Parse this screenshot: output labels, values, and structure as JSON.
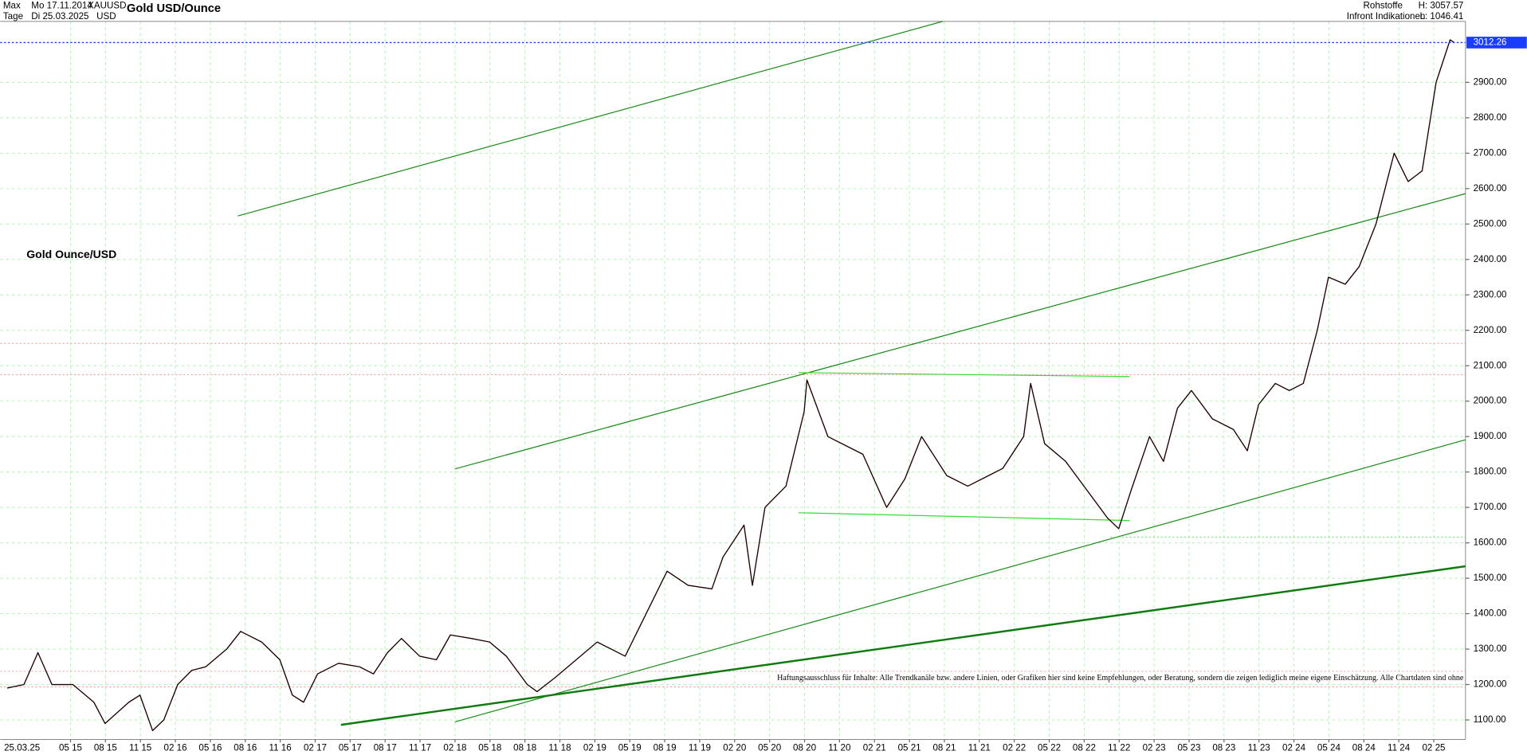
{
  "chart_data": {
    "type": "line",
    "title": "Gold USD/Ounce",
    "header": {
      "range": "Max",
      "start_date": "Mo 17.11.2014",
      "symbol": "XAUUSD",
      "interval": "Tage",
      "end_date": "Di 25.03.2025",
      "currency": "USD",
      "category": "Rohstoffe",
      "source": "Infront Indikationen",
      "high": "H: 3057.57",
      "low": "L: 1046.41"
    },
    "annotation": "Gold Ounce/USD",
    "disclaimer": "Haftungsausschluss für Inhalte: Alle Trendkanäle bzw. andere Linien, oder Grafiken hier sind keine Empfehlungen, oder Beratung, sondern die zeigen lediglich meine eigene Einschätzung. Alle Chartdaten sind ohne",
    "cursor_date": "25.03.25",
    "current_price": 3012.26,
    "xlim": [
      2014.83,
      2025.31
    ],
    "ylim": [
      1045,
      3072
    ],
    "grid": true,
    "xticks": [
      {
        "value": 2015.333,
        "label": "05 15"
      },
      {
        "value": 2015.583,
        "label": "08 15"
      },
      {
        "value": 2015.833,
        "label": "11 15"
      },
      {
        "value": 2016.083,
        "label": "02 16"
      },
      {
        "value": 2016.333,
        "label": "05 16"
      },
      {
        "value": 2016.583,
        "label": "08 16"
      },
      {
        "value": 2016.833,
        "label": "11 16"
      },
      {
        "value": 2017.083,
        "label": "02 17"
      },
      {
        "value": 2017.333,
        "label": "05 17"
      },
      {
        "value": 2017.583,
        "label": "08 17"
      },
      {
        "value": 2017.833,
        "label": "11 17"
      },
      {
        "value": 2018.083,
        "label": "02 18"
      },
      {
        "value": 2018.333,
        "label": "05 18"
      },
      {
        "value": 2018.583,
        "label": "08 18"
      },
      {
        "value": 2018.833,
        "label": "11 18"
      },
      {
        "value": 2019.083,
        "label": "02 19"
      },
      {
        "value": 2019.333,
        "label": "05 19"
      },
      {
        "value": 2019.583,
        "label": "08 19"
      },
      {
        "value": 2019.833,
        "label": "11 19"
      },
      {
        "value": 2020.083,
        "label": "02 20"
      },
      {
        "value": 2020.333,
        "label": "05 20"
      },
      {
        "value": 2020.583,
        "label": "08 20"
      },
      {
        "value": 2020.833,
        "label": "11 20"
      },
      {
        "value": 2021.083,
        "label": "02 21"
      },
      {
        "value": 2021.333,
        "label": "05 21"
      },
      {
        "value": 2021.583,
        "label": "08 21"
      },
      {
        "value": 2021.833,
        "label": "11 21"
      },
      {
        "value": 2022.083,
        "label": "02 22"
      },
      {
        "value": 2022.333,
        "label": "05 22"
      },
      {
        "value": 2022.583,
        "label": "08 22"
      },
      {
        "value": 2022.833,
        "label": "11 22"
      },
      {
        "value": 2023.083,
        "label": "02 23"
      },
      {
        "value": 2023.333,
        "label": "05 23"
      },
      {
        "value": 2023.583,
        "label": "08 23"
      },
      {
        "value": 2023.833,
        "label": "11 23"
      },
      {
        "value": 2024.083,
        "label": "02 24"
      },
      {
        "value": 2024.333,
        "label": "05 24"
      },
      {
        "value": 2024.583,
        "label": "08 24"
      },
      {
        "value": 2024.833,
        "label": "11 24"
      },
      {
        "value": 2025.083,
        "label": "02 25"
      }
    ],
    "yticks": [
      {
        "value": 1100,
        "label": "1100.00"
      },
      {
        "value": 1200,
        "label": "1200.00"
      },
      {
        "value": 1300,
        "label": "1300.00"
      },
      {
        "value": 1400,
        "label": "1400.00"
      },
      {
        "value": 1500,
        "label": "1500.00"
      },
      {
        "value": 1600,
        "label": "1600.00"
      },
      {
        "value": 1700,
        "label": "1700.00"
      },
      {
        "value": 1800,
        "label": "1800.00"
      },
      {
        "value": 1900,
        "label": "1900.00"
      },
      {
        "value": 2000,
        "label": "2000.00"
      },
      {
        "value": 2100,
        "label": "2100.00"
      },
      {
        "value": 2200,
        "label": "2200.00"
      },
      {
        "value": 2300,
        "label": "2300.00"
      },
      {
        "value": 2400,
        "label": "2400.00"
      },
      {
        "value": 2500,
        "label": "2500.00"
      },
      {
        "value": 2600,
        "label": "2600.00"
      },
      {
        "value": 2700,
        "label": "2700.00"
      },
      {
        "value": 2800,
        "label": "2800.00"
      },
      {
        "value": 2900,
        "label": "2900.00"
      }
    ],
    "series": [
      {
        "name": "XAUUSD",
        "color": "#1a0000",
        "x": [
          2014.88,
          2015.0,
          2015.1,
          2015.2,
          2015.35,
          2015.5,
          2015.58,
          2015.75,
          2015.83,
          2015.92,
          2016.0,
          2016.1,
          2016.2,
          2016.3,
          2016.45,
          2016.55,
          2016.7,
          2016.83,
          2016.92,
          2017.0,
          2017.1,
          2017.25,
          2017.4,
          2017.5,
          2017.6,
          2017.7,
          2017.83,
          2017.95,
          2018.05,
          2018.2,
          2018.33,
          2018.45,
          2018.6,
          2018.67,
          2018.8,
          2018.95,
          2019.1,
          2019.3,
          2019.45,
          2019.6,
          2019.75,
          2019.92,
          2020.0,
          2020.15,
          2020.21,
          2020.3,
          2020.45,
          2020.58,
          2020.6,
          2020.75,
          2020.9,
          2021.0,
          2021.17,
          2021.3,
          2021.42,
          2021.6,
          2021.75,
          2021.9,
          2022.0,
          2022.15,
          2022.2,
          2022.3,
          2022.45,
          2022.6,
          2022.75,
          2022.83,
          2022.92,
          2023.05,
          2023.15,
          2023.25,
          2023.35,
          2023.5,
          2023.65,
          2023.75,
          2023.83,
          2023.95,
          2024.05,
          2024.15,
          2024.25,
          2024.33,
          2024.45,
          2024.55,
          2024.67,
          2024.8,
          2024.9,
          2025.0,
          2025.1,
          2025.2,
          2025.23
        ],
        "values": [
          1190,
          1200,
          1290,
          1200,
          1200,
          1150,
          1090,
          1150,
          1170,
          1070,
          1100,
          1200,
          1240,
          1250,
          1300,
          1350,
          1320,
          1270,
          1170,
          1150,
          1230,
          1260,
          1250,
          1230,
          1290,
          1330,
          1280,
          1270,
          1340,
          1330,
          1320,
          1280,
          1200,
          1180,
          1220,
          1270,
          1320,
          1280,
          1400,
          1520,
          1480,
          1470,
          1560,
          1650,
          1480,
          1700,
          1760,
          1970,
          2060,
          1900,
          1870,
          1850,
          1700,
          1780,
          1900,
          1790,
          1760,
          1790,
          1810,
          1900,
          2050,
          1880,
          1830,
          1750,
          1670,
          1640,
          1750,
          1900,
          1830,
          1980,
          2030,
          1950,
          1920,
          1860,
          1990,
          2050,
          2030,
          2050,
          2200,
          2350,
          2330,
          2380,
          2500,
          2700,
          2620,
          2650,
          2900,
          3020,
          3012.26
        ]
      }
    ]
  }
}
